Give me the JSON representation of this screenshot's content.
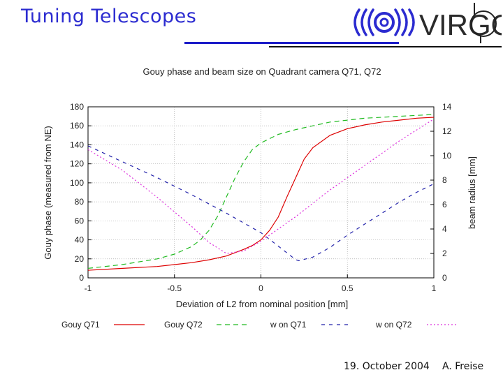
{
  "slide": {
    "title": "Tuning Telescopes",
    "footer_date": "19. October 2004",
    "footer_author": "A. Freise",
    "logo_text": "VIRGO",
    "accent": "#2b2bd0"
  },
  "chart_data": {
    "type": "line",
    "title": "Gouy phase and beam size on Quadrant camera Q71, Q72",
    "xlabel": "Deviation of L2 from nominal position [mm]",
    "ylabel": "Gouy phase (measured from NE)",
    "y2label": "beam radius [mm]",
    "xlim": [
      -1,
      1
    ],
    "ylim": [
      0,
      180
    ],
    "y2lim": [
      0,
      14
    ],
    "xticks": [
      "-1",
      "-0.5",
      "0",
      "0.5",
      "1"
    ],
    "yticks": [
      "0",
      "20",
      "40",
      "60",
      "80",
      "100",
      "120",
      "140",
      "160",
      "180"
    ],
    "y2ticks": [
      "0",
      "2",
      "4",
      "6",
      "8",
      "10",
      "12",
      "14"
    ],
    "grid": true,
    "series": [
      {
        "name": "Gouy Q71",
        "color": "#dd0000",
        "dash": "solid",
        "axis": "left",
        "x": [
          -1,
          -0.8,
          -0.6,
          -0.4,
          -0.3,
          -0.2,
          -0.1,
          -0.05,
          0,
          0.05,
          0.1,
          0.15,
          0.2,
          0.25,
          0.3,
          0.4,
          0.5,
          0.6,
          0.7,
          0.8,
          0.9,
          1.0
        ],
        "y": [
          8,
          10,
          12,
          16,
          19,
          23,
          30,
          34,
          40,
          50,
          64,
          85,
          105,
          125,
          137,
          150,
          157,
          161,
          164,
          166,
          168,
          169
        ]
      },
      {
        "name": "Gouy Q72",
        "color": "#22bb22",
        "dash": "dashed",
        "axis": "left",
        "x": [
          -1,
          -0.8,
          -0.6,
          -0.5,
          -0.4,
          -0.35,
          -0.3,
          -0.25,
          -0.2,
          -0.15,
          -0.1,
          -0.05,
          0,
          0.1,
          0.2,
          0.3,
          0.4,
          0.5,
          0.6,
          0.7,
          0.8,
          0.9,
          1.0
        ],
        "y": [
          10,
          14,
          20,
          25,
          33,
          40,
          50,
          65,
          85,
          105,
          122,
          135,
          142,
          151,
          156,
          160,
          164,
          166,
          168,
          169,
          170,
          171,
          172
        ]
      },
      {
        "name": "w on Q71",
        "color": "#2222aa",
        "dash": "dash",
        "axis": "right",
        "x": [
          -1,
          -0.8,
          -0.6,
          -0.4,
          -0.2,
          0,
          0.1,
          0.2,
          0.22,
          0.3,
          0.4,
          0.5,
          0.6,
          0.7,
          0.8,
          0.9,
          1.0
        ],
        "y": [
          10.8,
          9.5,
          8.2,
          6.8,
          5.3,
          3.7,
          2.6,
          1.5,
          1.4,
          1.7,
          2.5,
          3.5,
          4.4,
          5.3,
          6.2,
          7.0,
          7.7
        ]
      },
      {
        "name": "w on Q72",
        "color": "#dd33dd",
        "dash": "dotted",
        "axis": "right",
        "x": [
          -1,
          -0.8,
          -0.6,
          -0.4,
          -0.3,
          -0.2,
          -0.1,
          0,
          0.2,
          0.4,
          0.6,
          0.8,
          1.0
        ],
        "y": [
          10.5,
          8.8,
          6.6,
          4.2,
          2.9,
          2.0,
          2.2,
          3.0,
          5.0,
          7.2,
          9.2,
          11.2,
          13.0
        ]
      }
    ]
  }
}
